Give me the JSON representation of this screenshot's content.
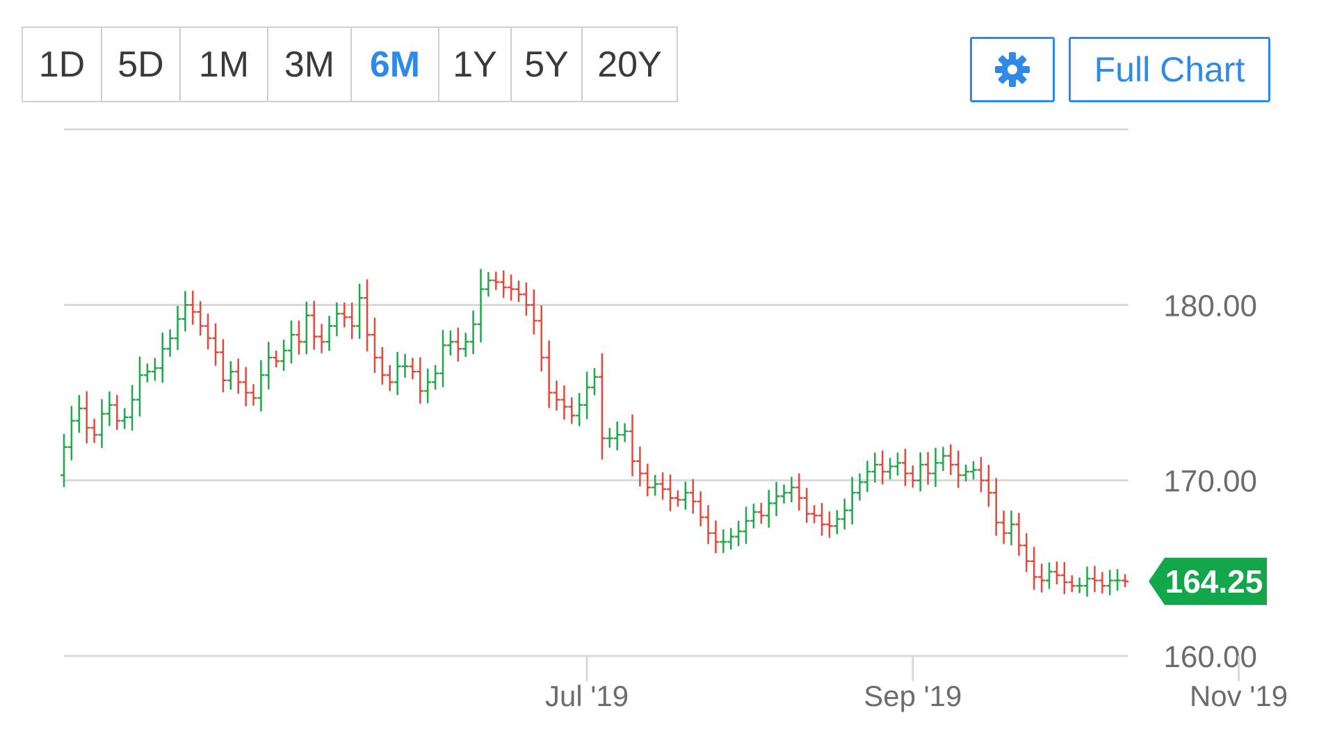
{
  "range_buttons": [
    {
      "label": "1D",
      "active": false
    },
    {
      "label": "5D",
      "active": false
    },
    {
      "label": "1M",
      "active": false
    },
    {
      "label": "3M",
      "active": false
    },
    {
      "label": "6M",
      "active": true
    },
    {
      "label": "1Y",
      "active": false
    },
    {
      "label": "5Y",
      "active": false
    },
    {
      "label": "20Y",
      "active": false
    }
  ],
  "settings": {
    "icon": "gear-icon"
  },
  "full_chart_label": "Full Chart",
  "colors": {
    "up": "#1ea84a",
    "down": "#e5483a",
    "accent": "#2e8ae6",
    "price_tag": "#13a64a",
    "grid": "#d9d9d9"
  },
  "current_price": "164.25",
  "chart_data": {
    "type": "ohlc",
    "y_ticks": [
      "180.00",
      "170.00",
      "160.00"
    ],
    "y_tick_values": [
      180,
      170,
      160
    ],
    "ylim": [
      160,
      190
    ],
    "x_ticks": [
      "Jul '19",
      "Sep '19",
      "Nov '19"
    ],
    "x_tick_index": [
      69,
      112,
      155
    ],
    "grid": true,
    "closes": [
      171.9,
      173.4,
      174.1,
      173.0,
      172.6,
      173.8,
      174.3,
      173.4,
      173.6,
      174.6,
      176.0,
      176.2,
      176.4,
      177.5,
      178.1,
      179.2,
      180.0,
      179.6,
      178.8,
      178.1,
      177.3,
      175.7,
      176.2,
      175.6,
      175.0,
      174.7,
      176.0,
      177.0,
      176.8,
      177.4,
      178.3,
      177.9,
      179.4,
      178.2,
      177.9,
      178.8,
      179.5,
      179.3,
      178.8,
      180.4,
      178.3,
      177.0,
      176.0,
      175.6,
      176.5,
      176.5,
      176.2,
      175.1,
      175.6,
      176.1,
      177.7,
      177.9,
      177.5,
      177.9,
      178.9,
      180.9,
      181.4,
      181.3,
      181.0,
      180.9,
      180.6,
      180.0,
      179.1,
      177.0,
      175.0,
      174.6,
      174.2,
      173.7,
      174.3,
      175.3,
      175.9,
      172.4,
      172.4,
      172.6,
      172.8,
      171.1,
      170.4,
      169.6,
      169.8,
      169.5,
      169.0,
      168.9,
      169.3,
      168.8,
      167.9,
      167.0,
      166.5,
      166.5,
      166.8,
      167.1,
      167.7,
      168.2,
      168.0,
      168.7,
      169.1,
      169.3,
      169.6,
      169.0,
      168.1,
      168.0,
      167.5,
      167.4,
      167.8,
      168.3,
      169.3,
      169.9,
      170.5,
      170.9,
      170.5,
      170.8,
      171.0,
      170.4,
      170.0,
      170.9,
      170.4,
      171.0,
      171.4,
      170.9,
      170.3,
      170.5,
      170.6,
      170.0,
      169.3,
      167.6,
      167.0,
      167.5,
      166.3,
      165.4,
      164.5,
      164.3,
      164.8,
      164.6,
      164.2,
      164.0,
      164.0,
      164.4,
      164.3,
      164.0,
      164.3,
      164.3,
      164.25
    ]
  }
}
